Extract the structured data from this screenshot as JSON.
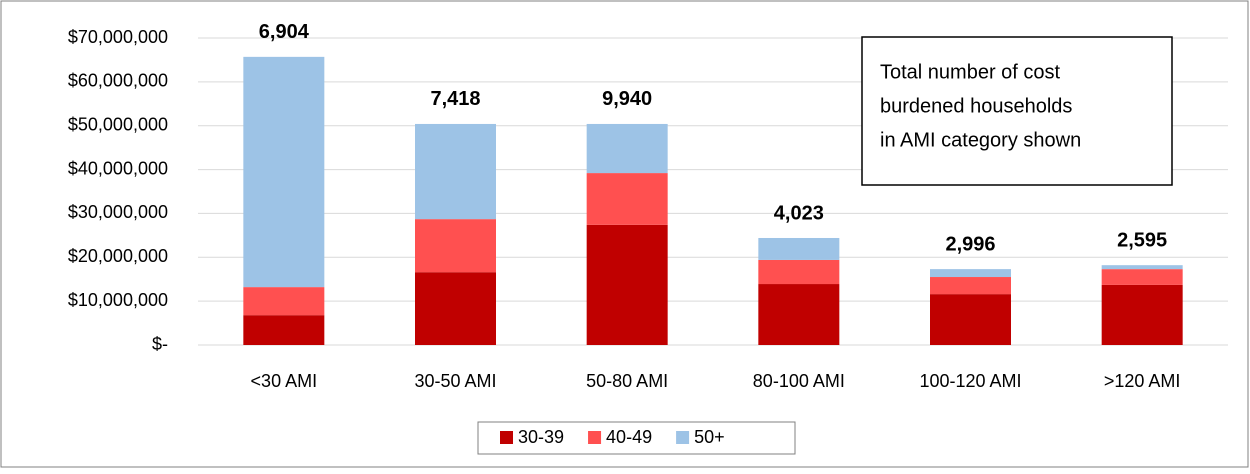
{
  "chart_data": {
    "type": "stacked_bar",
    "categories": [
      "<30 AMI",
      "30-50 AMI",
      "50-80 AMI",
      "80-100 AMI",
      "100-120 AMI",
      ">120 AMI"
    ],
    "series": [
      {
        "name": "30-39",
        "color": "#c00000",
        "values": [
          6800000,
          16600000,
          27400000,
          13900000,
          11600000,
          13700000
        ]
      },
      {
        "name": "40-49",
        "color": "#ff5050",
        "values": [
          6400000,
          12100000,
          11800000,
          5500000,
          3900000,
          3600000
        ]
      },
      {
        "name": "50+",
        "color": "#9dc3e6",
        "values": [
          52500000,
          21700000,
          11200000,
          5000000,
          1800000,
          900000
        ]
      }
    ],
    "bar_labels": [
      "6,904",
      "7,418",
      "9,940",
      "4,023",
      "2,996",
      "2,595"
    ],
    "annotation": [
      "Total number of cost",
      "burdened households",
      "in AMI category shown"
    ],
    "ylim": [
      0,
      70000000
    ],
    "yticks": [
      {
        "value": 0,
        "label": "$-"
      },
      {
        "value": 10000000,
        "label": "$10,000,000"
      },
      {
        "value": 20000000,
        "label": "$20,000,000"
      },
      {
        "value": 30000000,
        "label": "$30,000,000"
      },
      {
        "value": 40000000,
        "label": "$40,000,000"
      },
      {
        "value": 50000000,
        "label": "$50,000,000"
      },
      {
        "value": 60000000,
        "label": "$60,000,000"
      },
      {
        "value": 70000000,
        "label": "$70,000,000"
      }
    ],
    "grid": true
  }
}
